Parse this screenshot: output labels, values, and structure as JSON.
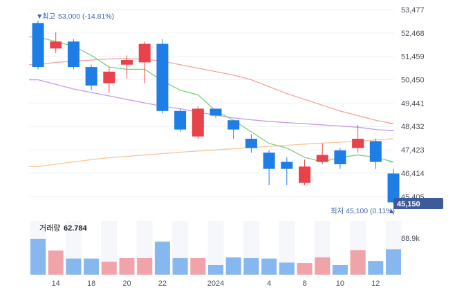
{
  "chart_data": {
    "type": "candlestick",
    "colors": {
      "up": "#e8424b",
      "down": "#1f7de6",
      "ma5": "#7bd17a",
      "ma20": "#f0a49c",
      "ma60": "#c59ae6",
      "ma120": "#f7c79a",
      "price_badge": "#3d5a9a",
      "annotation": "#3d64b0"
    },
    "y_axis": {
      "ticks": [
        "53,477",
        "52,468",
        "51,459",
        "50,450",
        "49,441",
        "48,432",
        "47,423",
        "46,414",
        "45,405"
      ],
      "ylim": [
        45100,
        53477
      ]
    },
    "x_axis": {
      "ticks": [
        "14",
        "18",
        "20",
        "22",
        "2024",
        "4",
        "8",
        "10",
        "12"
      ]
    },
    "annotations": {
      "high_marker": "▼",
      "high_label": "최고",
      "high_value": "53,000 (-14.81%)",
      "low_label": "최저",
      "low_value": "45,100 (0.11%)",
      "low_marker": "▲",
      "current_price": "45,150"
    },
    "volume": {
      "label": "거래량",
      "value": "62.784",
      "max_tick": "88.9k"
    },
    "candles": [
      {
        "o": 52900,
        "h": 53000,
        "l": 50900,
        "c": 51000
      },
      {
        "o": 51800,
        "h": 52500,
        "l": 51600,
        "c": 52100
      },
      {
        "o": 52100,
        "h": 52200,
        "l": 50900,
        "c": 51000
      },
      {
        "o": 51000,
        "h": 51100,
        "l": 50000,
        "c": 50200
      },
      {
        "o": 50300,
        "h": 51000,
        "l": 49900,
        "c": 50800
      },
      {
        "o": 51100,
        "h": 51500,
        "l": 50500,
        "c": 51300
      },
      {
        "o": 51200,
        "h": 52100,
        "l": 50300,
        "c": 52000
      },
      {
        "o": 52000,
        "h": 52200,
        "l": 49000,
        "c": 49100
      },
      {
        "o": 49100,
        "h": 49200,
        "l": 48200,
        "c": 48300
      },
      {
        "o": 48000,
        "h": 49300,
        "l": 47900,
        "c": 49200
      },
      {
        "o": 49200,
        "h": 49200,
        "l": 48800,
        "c": 48900
      },
      {
        "o": 48700,
        "h": 48700,
        "l": 47900,
        "c": 48300
      },
      {
        "o": 47900,
        "h": 48100,
        "l": 47300,
        "c": 47500
      },
      {
        "o": 47300,
        "h": 47400,
        "l": 45900,
        "c": 46600
      },
      {
        "o": 46900,
        "h": 47100,
        "l": 45900,
        "c": 46600
      },
      {
        "o": 46000,
        "h": 47000,
        "l": 45900,
        "c": 46700
      },
      {
        "o": 46900,
        "h": 47700,
        "l": 46800,
        "c": 47200
      },
      {
        "o": 47400,
        "h": 47500,
        "l": 46600,
        "c": 46800
      },
      {
        "o": 47500,
        "h": 48500,
        "l": 47300,
        "c": 47900
      },
      {
        "o": 47800,
        "h": 47900,
        "l": 46600,
        "c": 46900
      },
      {
        "o": 46400,
        "h": 46600,
        "l": 45100,
        "c": 45150
      }
    ],
    "ma5": [
      52300,
      52100,
      51900,
      51500,
      51000,
      50900,
      50900,
      50400,
      50000,
      49800,
      49100,
      48700,
      48200,
      47700,
      47500,
      47100,
      46900,
      47100,
      47200,
      47100,
      46900
    ],
    "ma20": [
      51100,
      51200,
      51250,
      51300,
      51350,
      51360,
      51340,
      51250,
      51100,
      50950,
      50800,
      50650,
      50450,
      50150,
      49850,
      49600,
      49350,
      49100,
      48900,
      48700,
      48550
    ],
    "ma60": [
      50450,
      50250,
      50050,
      49900,
      49750,
      49600,
      49450,
      49300,
      49200,
      49050,
      48920,
      48800,
      48720,
      48650,
      48600,
      48550,
      48500,
      48450,
      48400,
      48300,
      48250
    ],
    "ma120": [
      46700,
      46800,
      46900,
      47000,
      47080,
      47140,
      47200,
      47260,
      47320,
      47370,
      47420,
      47470,
      47520,
      47570,
      47620,
      47670,
      47710,
      47750,
      47800,
      47850,
      47900
    ],
    "volumes": [
      89000,
      60000,
      40000,
      40000,
      32000,
      41000,
      41000,
      82000,
      41000,
      41000,
      24000,
      43000,
      41000,
      40000,
      30000,
      29000,
      43000,
      24000,
      61000,
      34000,
      62784
    ]
  }
}
